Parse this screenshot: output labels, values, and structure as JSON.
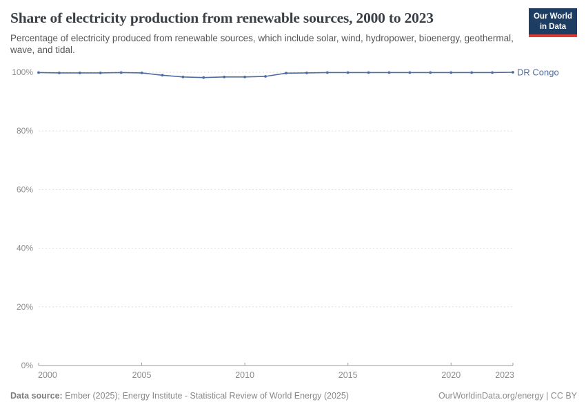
{
  "chart_data": {
    "type": "line",
    "title": "Share of electricity production from renewable sources, 2000 to 2023",
    "subtitle": "Percentage of electricity produced from renewable sources, which include solar, wind, hydropower, bioenergy, geothermal, wave, and tidal.",
    "x": [
      2000,
      2001,
      2002,
      2003,
      2004,
      2005,
      2006,
      2007,
      2008,
      2009,
      2010,
      2011,
      2012,
      2013,
      2014,
      2015,
      2016,
      2017,
      2018,
      2019,
      2020,
      2021,
      2022,
      2023
    ],
    "series": [
      {
        "name": "DR Congo",
        "color": "#4c6ba0",
        "values": [
          99.9,
          99.8,
          99.8,
          99.8,
          99.9,
          99.8,
          99.0,
          98.4,
          98.2,
          98.4,
          98.4,
          98.6,
          99.7,
          99.8,
          99.9,
          99.9,
          99.9,
          99.9,
          99.9,
          99.9,
          99.9,
          99.9,
          99.9,
          100.0
        ]
      }
    ],
    "xlabel": "",
    "ylabel": "",
    "ylim": [
      0,
      100
    ],
    "yticks": [
      0,
      20,
      40,
      60,
      80,
      100
    ],
    "ytick_suffix": "%",
    "xticks": [
      2000,
      2005,
      2010,
      2015,
      2020,
      2023
    ],
    "grid": "horizontal-dashed",
    "legend_position": "right-of-line"
  },
  "logo": {
    "line1": "Our World",
    "line2": "in Data",
    "bg_color": "#1d3d63",
    "stripe_color": "#d93a34"
  },
  "footer": {
    "datasource_label": "Data source:",
    "datasource_text": " Ember (2025); Energy Institute - Statistical Review of World Energy (2025)",
    "credit": "OurWorldinData.org/energy | CC BY"
  },
  "colors": {
    "title": "#3a4046",
    "subtitle": "#555555",
    "axis_labels": "#8c8c8c",
    "gridline": "#dddddd",
    "axis_line": "#999999",
    "line": "#4c6ba0",
    "logo_bg": "#1d3d63",
    "logo_stripe": "#d93a34"
  }
}
